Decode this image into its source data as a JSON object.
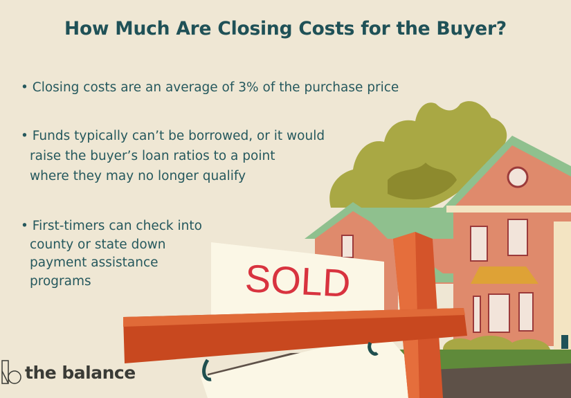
{
  "header": {
    "title": "How Much Are Closing Costs for the Buyer?"
  },
  "bullets": [
    {
      "lines": [
        "• Closing costs are an average of 3% of the purchase price"
      ]
    },
    {
      "lines": [
        "• Funds typically can’t be borrowed, or it would",
        "raise the buyer’s loan ratios to a point",
        "where they may no longer qualify"
      ]
    },
    {
      "lines": [
        "• First-timers can check into",
        "county or state down",
        "payment assistance",
        "programs"
      ]
    }
  ],
  "illustration": {
    "sign_text": "SOLD"
  },
  "brand": {
    "name": "the balance"
  },
  "colors": {
    "background": "#efe7d4",
    "title": "#1f5157",
    "sign_post": "#d4542a",
    "sign_text": "#d8333f",
    "house": "#df8a6c",
    "roof": "#8fc08e",
    "tree": "#a8a744"
  }
}
